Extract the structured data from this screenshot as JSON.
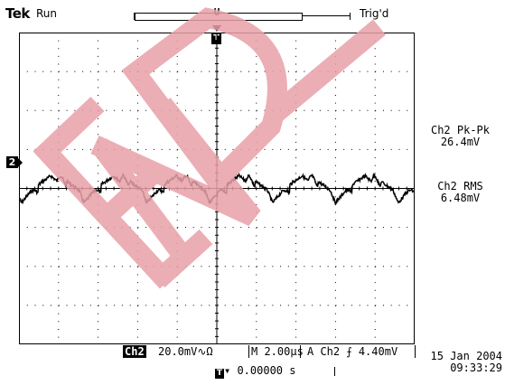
{
  "header": {
    "brand": "Tek",
    "run_state": "Run",
    "trigger_state": "Trig'd"
  },
  "channel": {
    "marker": "2"
  },
  "measurements": [
    {
      "label": "Ch2 Pk-Pk",
      "value": "26.4mV"
    },
    {
      "label": "Ch2 RMS",
      "value": "6.48mV"
    }
  ],
  "status_bar": {
    "channel": "Ch2",
    "volts_per_div": "20.0mV",
    "coupling_symbol": "∿Ω",
    "timebase": "M 2.00µs",
    "trigger": "A  Ch2 ⨍ 4.40mV"
  },
  "horizontal_position": "▾ 0.00000 s",
  "timestamp": {
    "date": "15 Jan 2004",
    "time": "09:33:29"
  },
  "colors": {
    "trace": "#000000",
    "watermark": "#e8a0a8",
    "grid": "#000000"
  },
  "icons": {
    "trigger_marker": "trigger-t-icon",
    "channel_marker": "channel-2-marker-icon"
  }
}
